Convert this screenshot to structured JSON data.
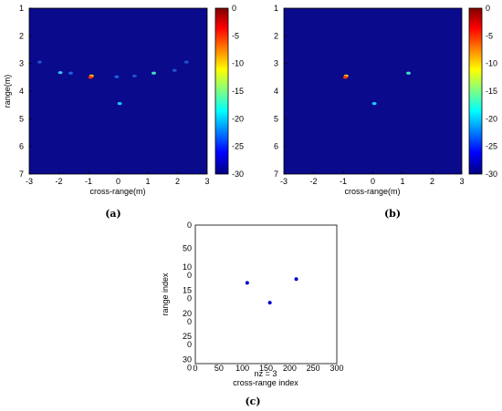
{
  "chart_data": [
    {
      "type": "heatmap",
      "panel_label": "(a)",
      "xlabel": "cross-range(m)",
      "ylabel": "range(m)",
      "xlim": [
        -3,
        3
      ],
      "ylim": [
        7,
        1
      ],
      "x_ticks": [
        "-3",
        "-2",
        "-1",
        "0",
        "1",
        "2",
        "3"
      ],
      "y_ticks": [
        "1",
        "2",
        "3",
        "4",
        "5",
        "6",
        "7"
      ],
      "background_color": "#0a0a8c",
      "colorbar": {
        "min": -30,
        "max": 0,
        "ticks": [
          "0",
          "-5",
          "-10",
          "-15",
          "-20",
          "-25",
          "-30"
        ]
      },
      "points": [
        {
          "x": -0.9,
          "y": 3.45,
          "value": -8,
          "color": "#ffd000"
        },
        {
          "x": -0.93,
          "y": 3.5,
          "value": -3,
          "color": "#ff3000"
        },
        {
          "x": 1.2,
          "y": 3.35,
          "value": -18,
          "color": "#40e0c0"
        },
        {
          "x": 0.05,
          "y": 4.45,
          "value": -20,
          "color": "#20c8ff"
        },
        {
          "x": -1.95,
          "y": 3.33,
          "value": -23,
          "color": "#40c0ff"
        },
        {
          "x": -1.6,
          "y": 3.35,
          "value": -27,
          "color": "#2060e0"
        },
        {
          "x": -0.05,
          "y": 3.48,
          "value": -27,
          "color": "#2060e0"
        },
        {
          "x": -2.65,
          "y": 2.95,
          "value": -28,
          "color": "#2050d0"
        },
        {
          "x": 0.55,
          "y": 3.45,
          "value": -28,
          "color": "#2050d0"
        },
        {
          "x": 1.9,
          "y": 3.25,
          "value": -28,
          "color": "#2050d0"
        },
        {
          "x": 2.3,
          "y": 2.95,
          "value": -28,
          "color": "#2050d0"
        }
      ]
    },
    {
      "type": "heatmap",
      "panel_label": "(b)",
      "xlabel": "cross-range(m)",
      "ylabel": "range(m)",
      "xlim": [
        -3,
        3
      ],
      "ylim": [
        7,
        1
      ],
      "x_ticks": [
        "-3",
        "-2",
        "-1",
        "0",
        "1",
        "2",
        "3"
      ],
      "y_ticks": [
        "1",
        "2",
        "3",
        "4",
        "5",
        "6",
        "7"
      ],
      "background_color": "#0a0a8c",
      "colorbar": {
        "min": -30,
        "max": 0,
        "ticks": [
          "0",
          "-5",
          "-10",
          "-15",
          "-20",
          "-25",
          "-30"
        ]
      },
      "points": [
        {
          "x": -0.9,
          "y": 3.45,
          "value": -8,
          "color": "#ffd000"
        },
        {
          "x": -0.93,
          "y": 3.5,
          "value": -3,
          "color": "#ff3000"
        },
        {
          "x": 1.2,
          "y": 3.35,
          "value": -18,
          "color": "#40e0c0"
        },
        {
          "x": 0.05,
          "y": 4.45,
          "value": -20,
          "color": "#20c8ff"
        }
      ]
    },
    {
      "type": "scatter",
      "panel_label": "(c)",
      "xlabel": "cross-range index",
      "ylabel": "range index",
      "sub_xlabel": "nz = 3",
      "xlim": [
        0,
        300
      ],
      "ylim": [
        300,
        0
      ],
      "x_ticks": [
        "0",
        "50",
        "100",
        "150",
        "200",
        "250",
        "300"
      ],
      "y_ticks": [
        "0",
        "50",
        "10\n0",
        "15\n0",
        "20\n0",
        "25\n0",
        "30\n0"
      ],
      "y_tick_values": [
        0,
        50,
        100,
        150,
        200,
        250,
        300
      ],
      "marker_color": "#0000cc",
      "points": [
        {
          "x": 110,
          "y": 125
        },
        {
          "x": 158,
          "y": 168
        },
        {
          "x": 214,
          "y": 117
        }
      ]
    }
  ]
}
